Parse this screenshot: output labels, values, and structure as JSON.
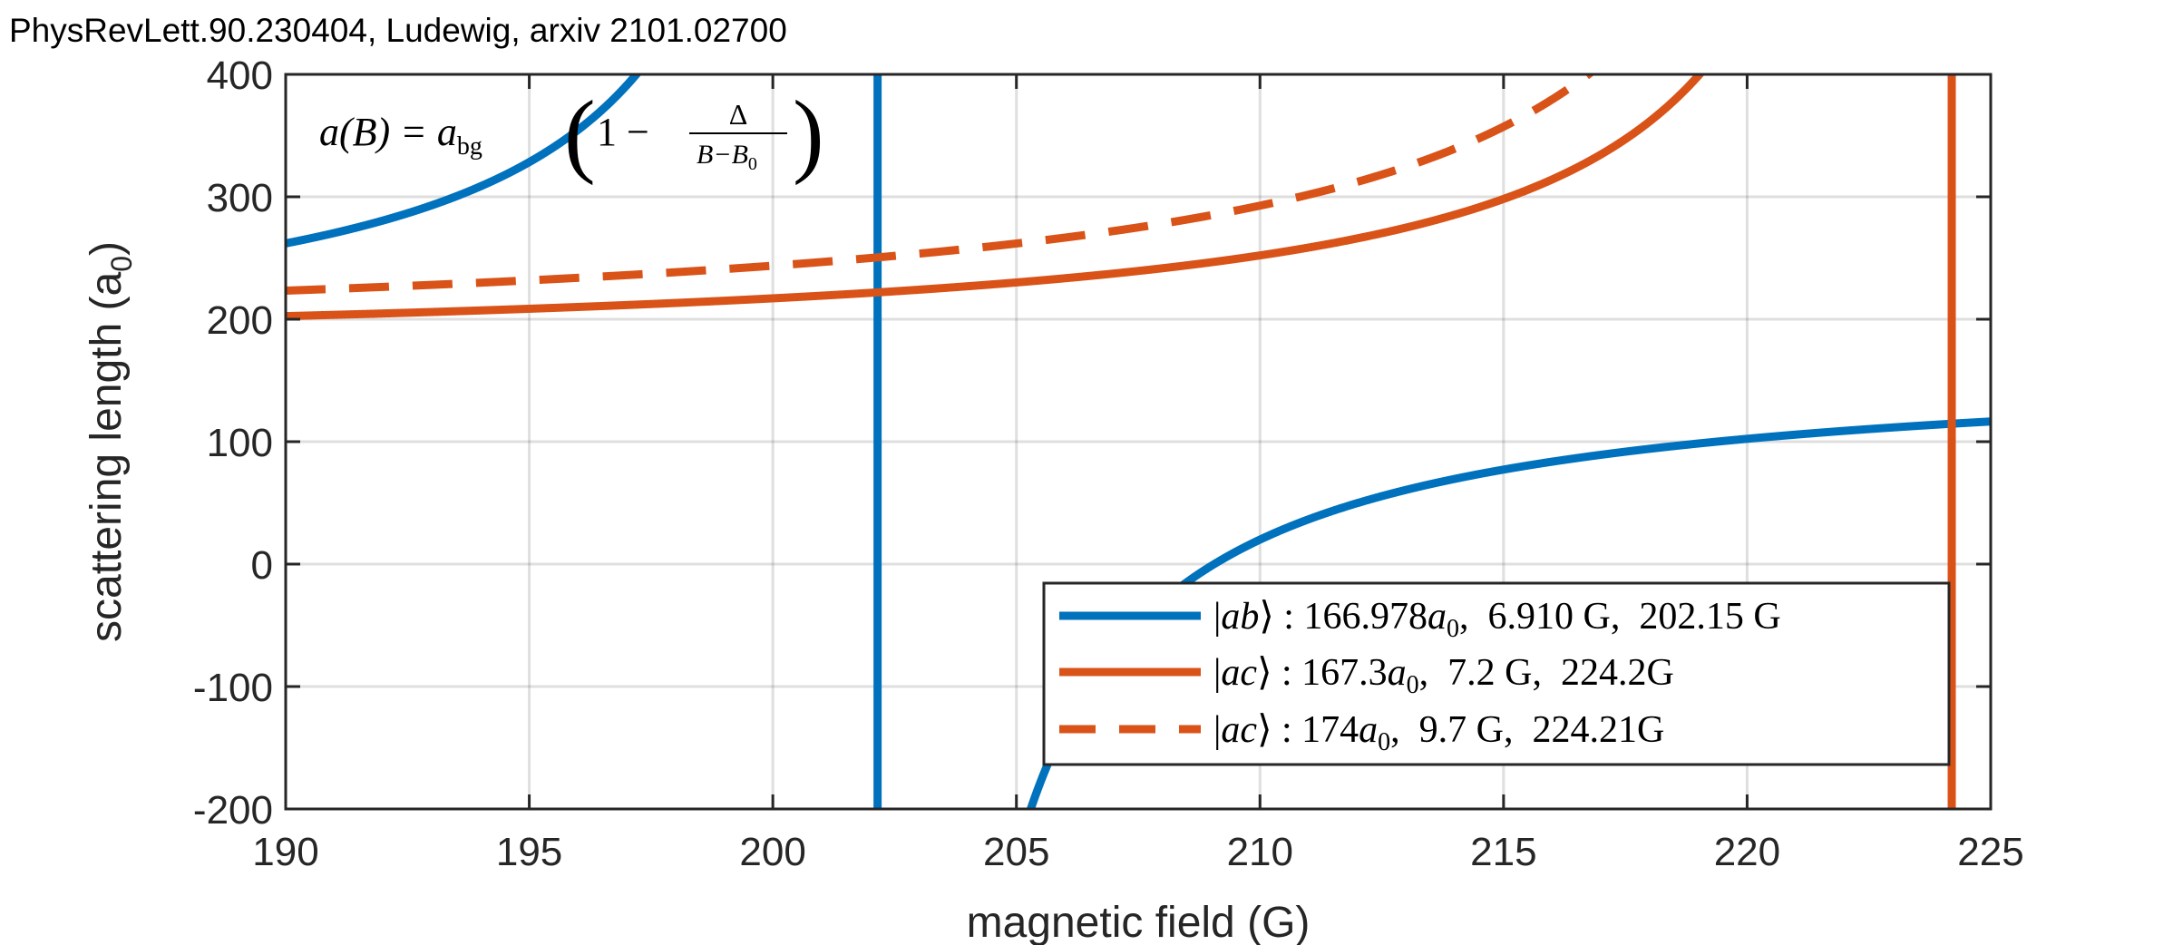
{
  "chart_data": {
    "type": "line",
    "title": "PhysRevLett.90.230404, Ludewig, arxiv 2101.02700",
    "xlabel": "magnetic field (G)",
    "ylabel": "scattering length (a",
    "ylabel_sub": "0",
    "ylabel_close": ")",
    "xlim": [
      190,
      225
    ],
    "ylim": [
      -200,
      400
    ],
    "xticks": [
      190,
      195,
      200,
      205,
      210,
      215,
      220,
      225
    ],
    "xtick_labels": [
      "190",
      "195",
      "200",
      "205",
      "210",
      "215",
      "220",
      "225"
    ],
    "yticks": [
      -200,
      -100,
      0,
      100,
      200,
      300,
      400
    ],
    "ytick_labels": [
      "-200",
      "-100",
      "0",
      "100",
      "200",
      "300",
      "400"
    ],
    "grid": true,
    "legend_position": "bottom-right",
    "formula": {
      "lhs": "a(B) = a",
      "lhs_sub": "bg",
      "one_minus": "1 −",
      "numerator": "Δ",
      "denominator": "B−B",
      "denominator_sub": "0"
    },
    "model": "a(B) = a_bg (1 - Δ / (B - B0))",
    "series": [
      {
        "name": "|ab⟩ : 166.978a0, 6.910 G, 202.15 G",
        "legend": {
          "prefix": "|",
          "state": "ab",
          "suffix": "⟩ : 166.978",
          "unit": "a",
          "unit_sub": "0",
          "rest": ",  6.910 G,  202.15 G"
        },
        "a_bg": 166.978,
        "delta": 6.91,
        "B0": 202.15,
        "color": "#0072BD",
        "style": "solid"
      },
      {
        "name": "|ac⟩ : 167.3a0, 7.2 G, 224.2G",
        "legend": {
          "prefix": "|",
          "state": "ac",
          "suffix": "⟩ : 167.3",
          "unit": "a",
          "unit_sub": "0",
          "rest": ",  7.2 G,  224.2G"
        },
        "a_bg": 167.3,
        "delta": 7.2,
        "B0": 224.2,
        "color": "#D95319",
        "style": "solid"
      },
      {
        "name": "|ac⟩ : 174a0, 9.7 G, 224.21G",
        "legend": {
          "prefix": "|",
          "state": "ac",
          "suffix": "⟩ : 174",
          "unit": "a",
          "unit_sub": "0",
          "rest": ",  9.7 G,  224.21G"
        },
        "a_bg": 174,
        "delta": 9.7,
        "B0": 224.21,
        "color": "#D95319",
        "style": "dashed"
      }
    ]
  }
}
